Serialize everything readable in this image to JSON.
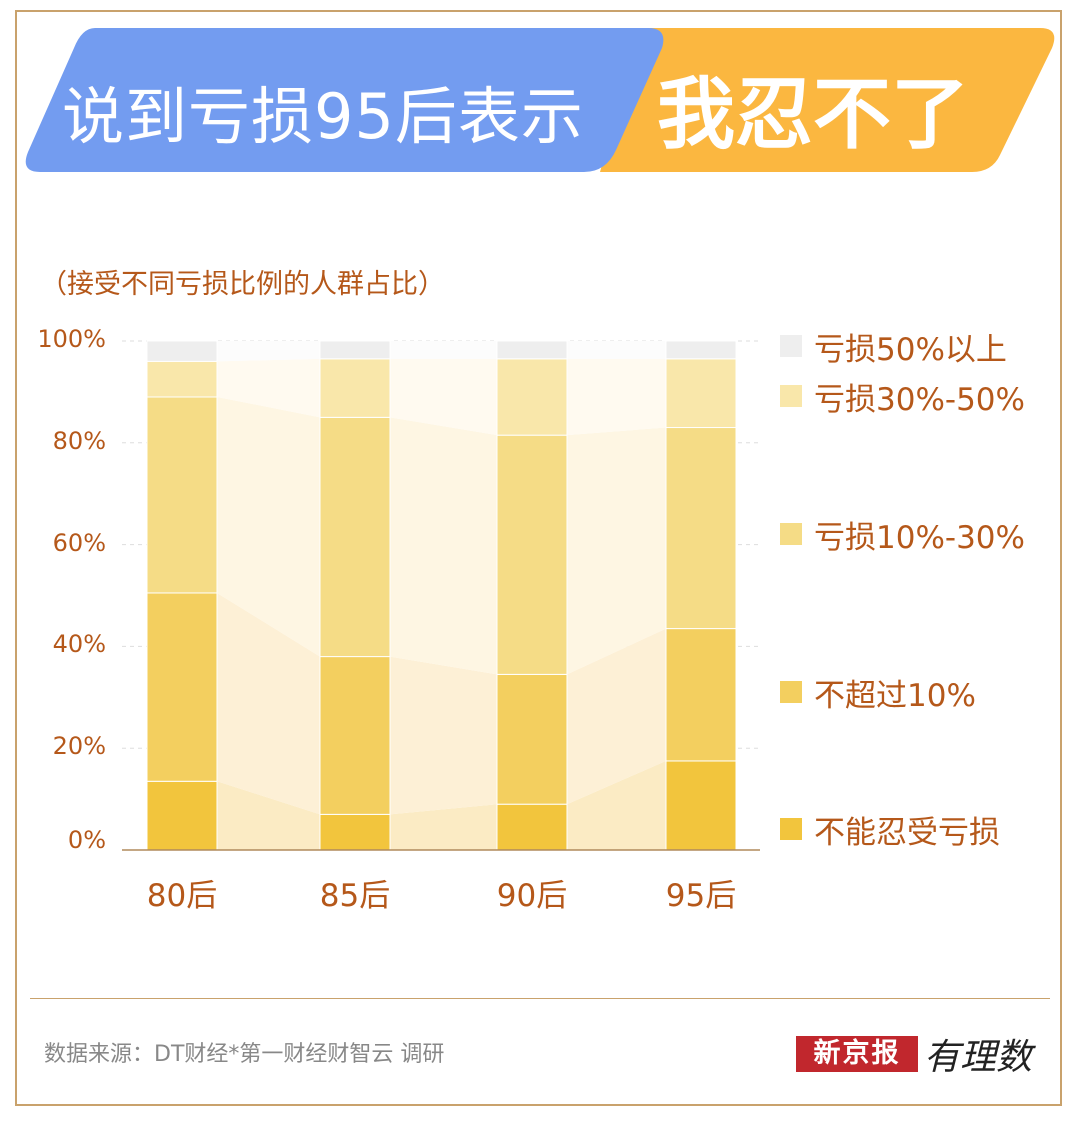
{
  "title": {
    "left_text": "说到亏损95后表示",
    "right_text": "我忍不了",
    "left_color": "#739cf0",
    "right_color": "#fbb740"
  },
  "chart_data": {
    "type": "bar",
    "stacked": true,
    "title": "说到亏损95后表示我忍不了",
    "subtitle": "（接受不同亏损比例的人群占比）",
    "categories": [
      "80后",
      "85后",
      "90后",
      "95后"
    ],
    "ylim": [
      0,
      100
    ],
    "yticks": [
      "0%",
      "20%",
      "40%",
      "60%",
      "80%",
      "100%"
    ],
    "grid": true,
    "legend_position": "right",
    "series": [
      {
        "name": "不能忍受亏损",
        "values": [
          13.5,
          7,
          9,
          17.5
        ],
        "color": "#f2c53d",
        "band": "#fbebc4"
      },
      {
        "name": "不超过10%",
        "values": [
          37,
          31,
          25.5,
          26
        ],
        "color": "#f3cf5f",
        "band": "#fdf0d6"
      },
      {
        "name": "亏损10%-30%",
        "values": [
          38.5,
          47,
          47,
          39.5
        ],
        "color": "#f5dc86",
        "band": "#fef6e3"
      },
      {
        "name": "亏损30%-50%",
        "values": [
          7,
          11.5,
          15,
          13.5
        ],
        "color": "#f9e7aa",
        "band": "#fffaf0"
      },
      {
        "name": "亏损50%以上",
        "values": [
          4,
          3.5,
          3.5,
          3.5
        ],
        "color": "#eeeeee",
        "band": "#fcfcfc"
      }
    ]
  },
  "legend_order": [
    "亏损50%以上",
    "亏损30%-50%",
    "亏损10%-30%",
    "不超过10%",
    "不能忍受亏损"
  ],
  "footer": {
    "source": "数据来源：DT财经*第一财经财智云 调研",
    "logo_text": "新京报",
    "logo_script": "有理数"
  }
}
